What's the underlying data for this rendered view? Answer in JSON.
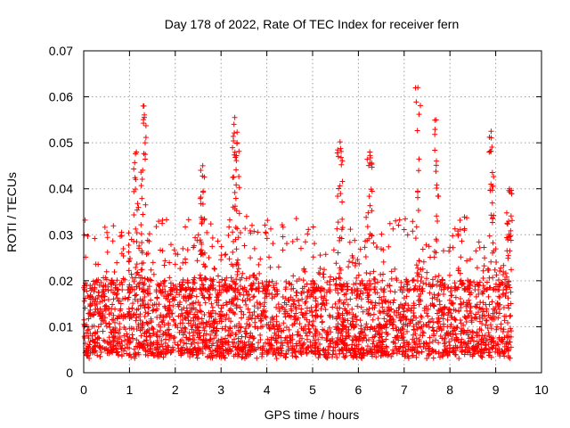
{
  "chart_data": {
    "type": "scatter",
    "title": "Day 178 of 2022, Rate Of TEC Index for receiver fern",
    "xlabel": "GPS time / hours",
    "ylabel": "ROTI / TECUs",
    "xlim": [
      0,
      10
    ],
    "ylim": [
      0,
      0.07
    ],
    "xticks": [
      0,
      1,
      2,
      3,
      4,
      5,
      6,
      7,
      8,
      9,
      10
    ],
    "xtick_labels": [
      "0",
      "1",
      "2",
      "3",
      "4",
      "5",
      "6",
      "7",
      "8",
      "9",
      "10"
    ],
    "yticks": [
      0,
      0.01,
      0.02,
      0.03,
      0.04,
      0.05,
      0.06,
      0.07
    ],
    "ytick_labels": [
      "0",
      "0.01",
      "0.02",
      "0.03",
      "0.04",
      "0.05",
      "0.06",
      "0.07"
    ],
    "grid": true,
    "marker": "plus",
    "series": [
      {
        "name": "ROTI",
        "color": "#ff0000",
        "x_range": [
          0.0,
          9.35
        ],
        "baseline_range": [
          0.004,
          0.02
        ],
        "peaks": [
          {
            "x": 1.3,
            "y": 0.058
          },
          {
            "x": 1.15,
            "y": 0.048
          },
          {
            "x": 2.6,
            "y": 0.045
          },
          {
            "x": 3.3,
            "y": 0.0555
          },
          {
            "x": 3.35,
            "y": 0.05
          },
          {
            "x": 5.6,
            "y": 0.0502
          },
          {
            "x": 6.25,
            "y": 0.048
          },
          {
            "x": 7.3,
            "y": 0.062
          },
          {
            "x": 7.7,
            "y": 0.055
          },
          {
            "x": 8.9,
            "y": 0.0525
          },
          {
            "x": 9.3,
            "y": 0.04
          }
        ]
      }
    ]
  }
}
